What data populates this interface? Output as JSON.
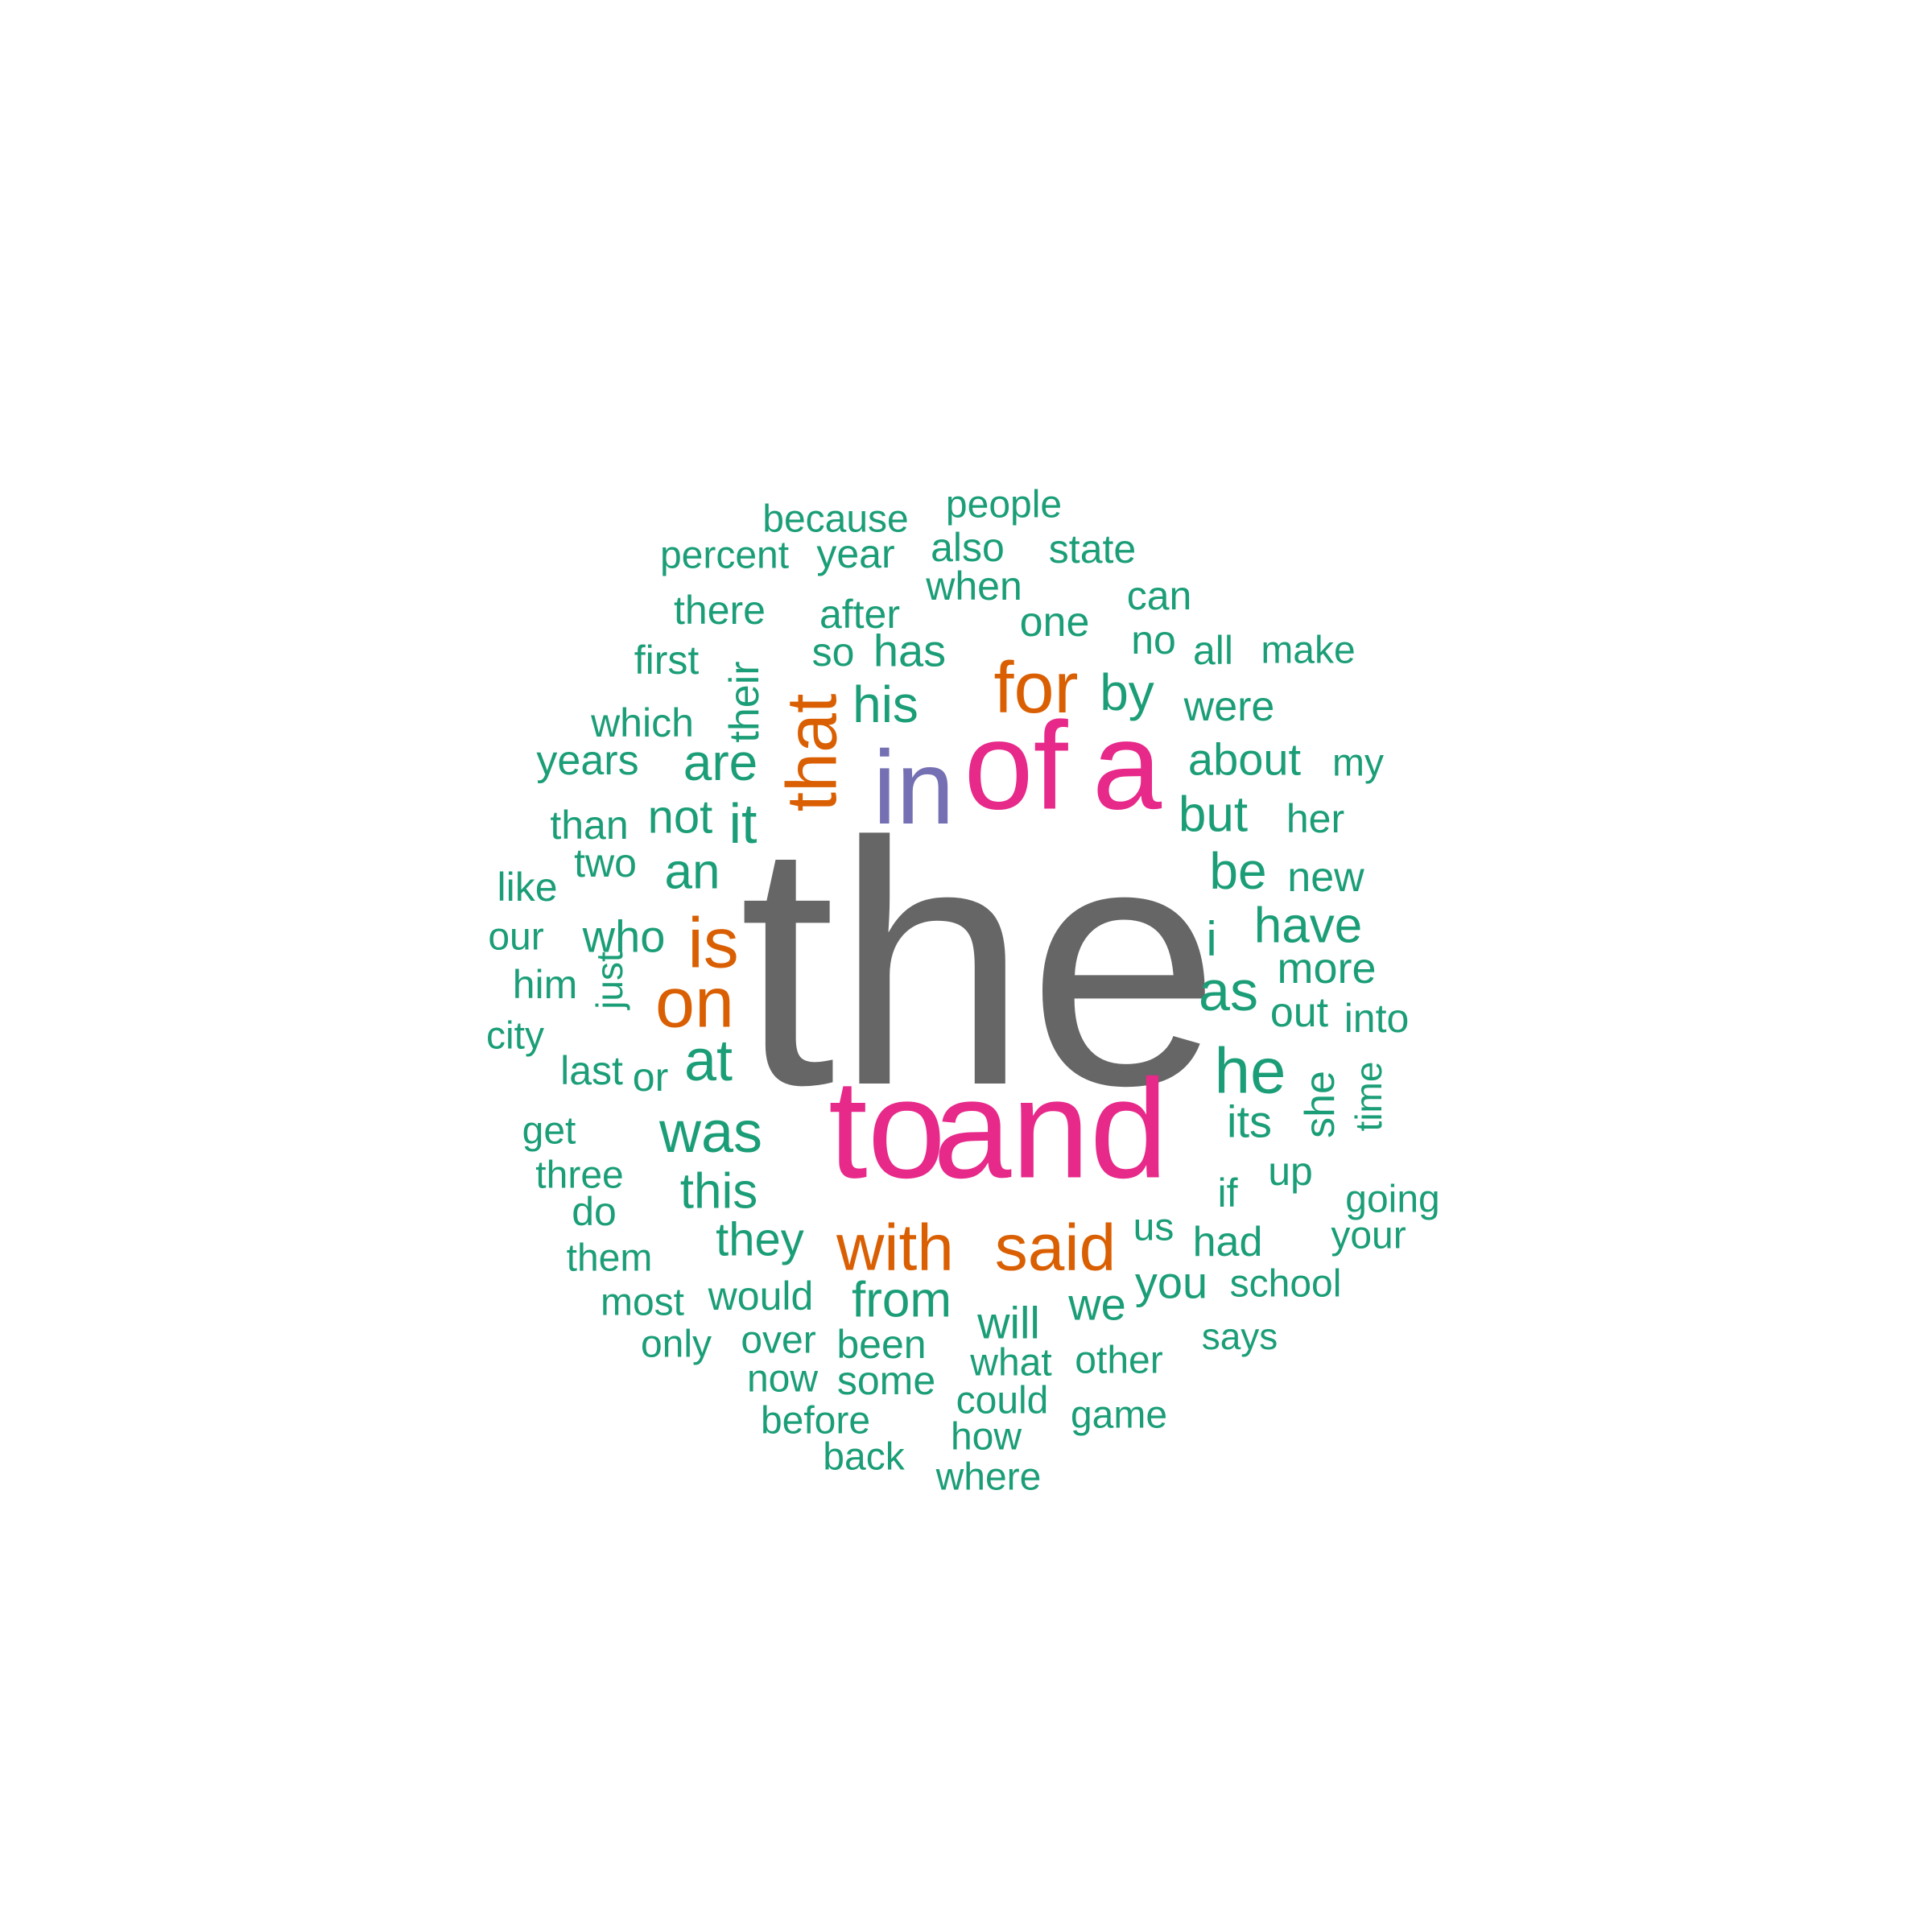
{
  "palette": {
    "gray": "#666666",
    "pink": "#e7298a",
    "purple": "#7570b3",
    "orange": "#d95f02",
    "green": "#1b9e77"
  },
  "words": [
    {
      "text": "the",
      "color": "gray"
    },
    {
      "text": "to",
      "color": "pink"
    },
    {
      "text": "and",
      "color": "pink"
    },
    {
      "text": "of",
      "color": "pink"
    },
    {
      "text": "a",
      "color": "pink"
    },
    {
      "text": "in",
      "color": "purple"
    },
    {
      "text": "that",
      "color": "orange",
      "rotated": true
    },
    {
      "text": "for",
      "color": "orange"
    },
    {
      "text": "is",
      "color": "orange"
    },
    {
      "text": "on",
      "color": "orange"
    },
    {
      "text": "with",
      "color": "orange"
    },
    {
      "text": "said",
      "color": "orange"
    },
    {
      "text": "was",
      "color": "green"
    },
    {
      "text": "he",
      "color": "green"
    },
    {
      "text": "it",
      "color": "green"
    },
    {
      "text": "at",
      "color": "green"
    },
    {
      "text": "as",
      "color": "green"
    },
    {
      "text": "his",
      "color": "green"
    },
    {
      "text": "by",
      "color": "green"
    },
    {
      "text": "are",
      "color": "green"
    },
    {
      "text": "be",
      "color": "green"
    },
    {
      "text": "but",
      "color": "green"
    },
    {
      "text": "have",
      "color": "green"
    },
    {
      "text": "from",
      "color": "green"
    },
    {
      "text": "this",
      "color": "green"
    },
    {
      "text": "they",
      "color": "green"
    },
    {
      "text": "has",
      "color": "green"
    },
    {
      "text": "an",
      "color": "green"
    },
    {
      "text": "not",
      "color": "green"
    },
    {
      "text": "about",
      "color": "green"
    },
    {
      "text": "i",
      "color": "green"
    },
    {
      "text": "its",
      "color": "green"
    },
    {
      "text": "will",
      "color": "green"
    },
    {
      "text": "we",
      "color": "green"
    },
    {
      "text": "you",
      "color": "green"
    },
    {
      "text": "who",
      "color": "green"
    },
    {
      "text": "more",
      "color": "green"
    },
    {
      "text": "had",
      "color": "green"
    },
    {
      "text": "were",
      "color": "green"
    },
    {
      "text": "their",
      "color": "green",
      "rotated": true
    },
    {
      "text": "she",
      "color": "green",
      "rotated": true
    },
    {
      "text": "one",
      "color": "green"
    },
    {
      "text": "when",
      "color": "green"
    },
    {
      "text": "would",
      "color": "green"
    },
    {
      "text": "been",
      "color": "green"
    },
    {
      "text": "up",
      "color": "green"
    },
    {
      "text": "out",
      "color": "green"
    },
    {
      "text": "which",
      "color": "green"
    },
    {
      "text": "there",
      "color": "green"
    },
    {
      "text": "year",
      "color": "green"
    },
    {
      "text": "after",
      "color": "green"
    },
    {
      "text": "also",
      "color": "green"
    },
    {
      "text": "people",
      "color": "green"
    },
    {
      "text": "state",
      "color": "green"
    },
    {
      "text": "because",
      "color": "green"
    },
    {
      "text": "percent",
      "color": "green"
    },
    {
      "text": "can",
      "color": "green"
    },
    {
      "text": "no",
      "color": "green"
    },
    {
      "text": "all",
      "color": "green"
    },
    {
      "text": "make",
      "color": "green"
    },
    {
      "text": "so",
      "color": "green"
    },
    {
      "text": "first",
      "color": "green"
    },
    {
      "text": "years",
      "color": "green"
    },
    {
      "text": "my",
      "color": "green"
    },
    {
      "text": "than",
      "color": "green"
    },
    {
      "text": "her",
      "color": "green"
    },
    {
      "text": "two",
      "color": "green"
    },
    {
      "text": "new",
      "color": "green"
    },
    {
      "text": "like",
      "color": "green"
    },
    {
      "text": "our",
      "color": "green"
    },
    {
      "text": "him",
      "color": "green"
    },
    {
      "text": "just",
      "color": "green",
      "rotated": true
    },
    {
      "text": "city",
      "color": "green"
    },
    {
      "text": "into",
      "color": "green"
    },
    {
      "text": "last",
      "color": "green"
    },
    {
      "text": "or",
      "color": "green"
    },
    {
      "text": "time",
      "color": "green",
      "rotated": true
    },
    {
      "text": "get",
      "color": "green"
    },
    {
      "text": "three",
      "color": "green"
    },
    {
      "text": "do",
      "color": "green"
    },
    {
      "text": "if",
      "color": "green"
    },
    {
      "text": "going",
      "color": "green"
    },
    {
      "text": "your",
      "color": "green"
    },
    {
      "text": "them",
      "color": "green"
    },
    {
      "text": "us",
      "color": "green"
    },
    {
      "text": "school",
      "color": "green"
    },
    {
      "text": "most",
      "color": "green"
    },
    {
      "text": "says",
      "color": "green"
    },
    {
      "text": "only",
      "color": "green"
    },
    {
      "text": "over",
      "color": "green"
    },
    {
      "text": "what",
      "color": "green"
    },
    {
      "text": "other",
      "color": "green"
    },
    {
      "text": "now",
      "color": "green"
    },
    {
      "text": "some",
      "color": "green"
    },
    {
      "text": "could",
      "color": "green"
    },
    {
      "text": "before",
      "color": "green"
    },
    {
      "text": "game",
      "color": "green"
    },
    {
      "text": "how",
      "color": "green"
    },
    {
      "text": "back",
      "color": "green"
    },
    {
      "text": "where",
      "color": "green"
    }
  ]
}
